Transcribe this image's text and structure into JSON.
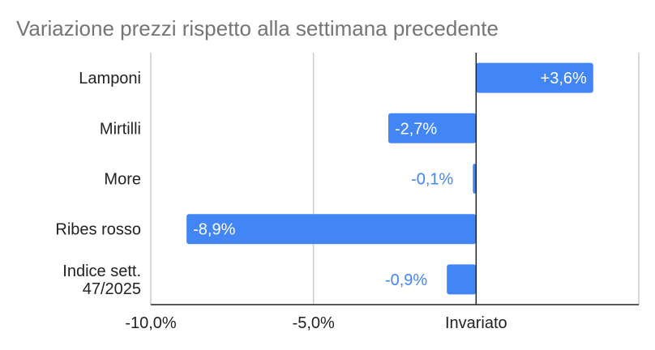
{
  "chart_data": {
    "type": "bar",
    "orientation": "horizontal",
    "title": "Variazione prezzi rispetto alla settimana precedente",
    "categories": [
      [
        "Lamponi"
      ],
      [
        "Mirtilli"
      ],
      [
        "More"
      ],
      [
        "Ribes rosso"
      ],
      [
        "Indice sett.",
        "47/2025"
      ]
    ],
    "values": [
      3.6,
      -2.7,
      -0.1,
      -8.9,
      -0.9
    ],
    "data_labels": [
      "+3,6%",
      "-2,7%",
      "-0,1%",
      "-8,9%",
      "-0,9%"
    ],
    "xlim": [
      -10,
      5
    ],
    "x_ticks": [
      {
        "value": -10,
        "label": "-10,0%"
      },
      {
        "value": -5,
        "label": "-5,0%"
      },
      {
        "value": 0,
        "label": "Invariato"
      }
    ],
    "grid": true,
    "legend": "none",
    "bar_color": "#4285f4",
    "inside_label_color": "#ffffff",
    "outside_label_color": "#4285f4",
    "grid_color": "#cccccc",
    "axis_color": "#222222"
  }
}
